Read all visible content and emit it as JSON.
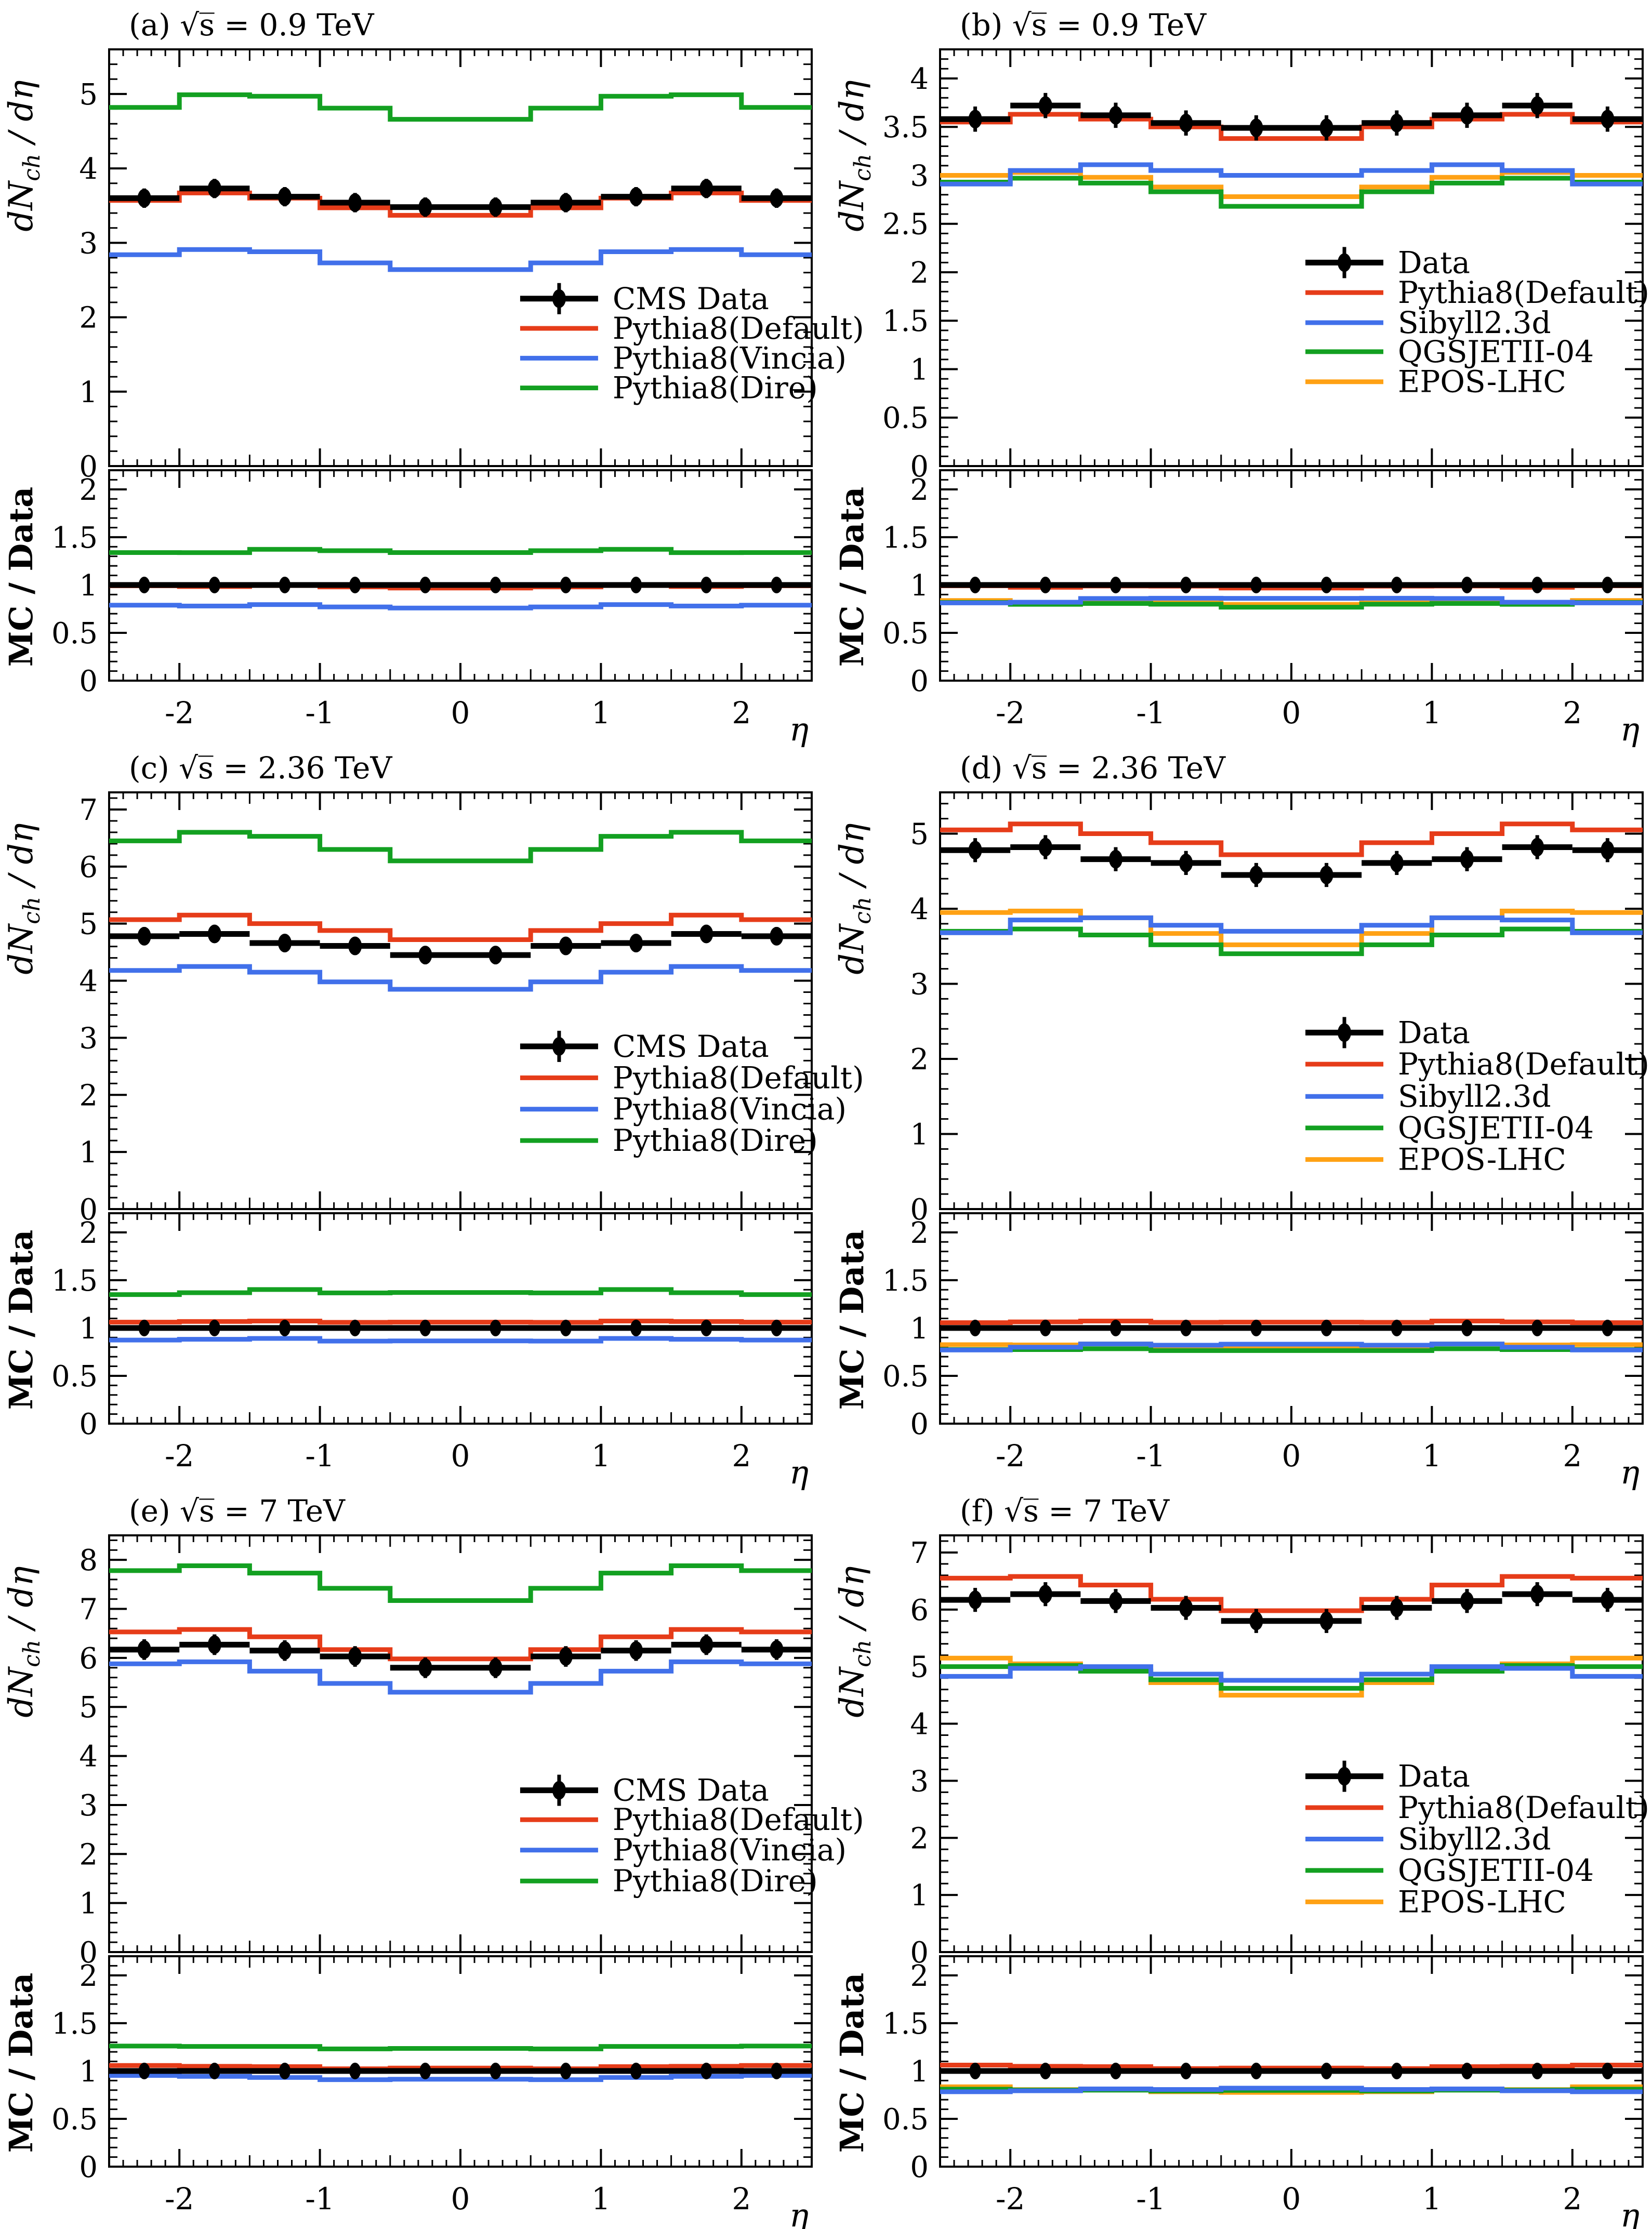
{
  "figure": {
    "x_axis_label": "η",
    "x_tick_labels": [
      "-2",
      "-1",
      "0",
      "1",
      "2"
    ],
    "main_y_title_parts": [
      "dN",
      "ch",
      " / d",
      "η"
    ],
    "ratio_y_title": "MC / Data",
    "sqrt_s_prefix": "√s = "
  },
  "colors": {
    "data": "#000000",
    "red": "#e63c19",
    "blue": "#4170ea",
    "green": "#13a021",
    "orange": "#ffa114"
  },
  "chart_data": {
    "type": "line",
    "note": "Six panels; each has a main step-histogram chart (dNch/deta vs eta) and a ratio chart (MC/Data vs eta). Bin edges from -2.5 to 2.5, width 0.5.",
    "bin_edges": [
      -2.5,
      -2.0,
      -1.5,
      -1.0,
      -0.5,
      0.0,
      0.5,
      1.0,
      1.5,
      2.0,
      2.5
    ],
    "bin_centers": [
      -2.25,
      -1.75,
      -1.25,
      -0.75,
      -0.25,
      0.25,
      0.75,
      1.25,
      1.75,
      2.25
    ],
    "ratio_ylim": [
      0,
      2.2
    ],
    "ratio_tick_labels": [
      "0",
      "0.5",
      "1",
      "1.5",
      "2"
    ],
    "panels": [
      {
        "id": "a",
        "row": 0,
        "col": 0,
        "tag": "(a)",
        "energy": "0.9 TeV",
        "ymax": 5.6,
        "label_step": 1,
        "minor_step": 0.2,
        "max_label": 5,
        "data": {
          "label": "CMS Data",
          "values": [
            3.6,
            3.73,
            3.62,
            3.54,
            3.48,
            3.48,
            3.54,
            3.62,
            3.73,
            3.6
          ],
          "err": 0.13
        },
        "series": [
          {
            "key": "pythia8-dire",
            "label": "Pythia8(Dire)",
            "color": "green",
            "values": [
              4.82,
              4.99,
              4.97,
              4.81,
              4.66,
              4.66,
              4.81,
              4.97,
              4.99,
              4.82
            ],
            "ratio": [
              1.339,
              1.338,
              1.373,
              1.359,
              1.339,
              1.339,
              1.359,
              1.373,
              1.338,
              1.339
            ]
          },
          {
            "key": "pythia8-vincia",
            "label": "Pythia8(Vincia)",
            "color": "blue",
            "values": [
              2.84,
              2.91,
              2.88,
              2.73,
              2.64,
              2.64,
              2.73,
              2.88,
              2.91,
              2.84
            ],
            "ratio": [
              0.789,
              0.78,
              0.795,
              0.771,
              0.759,
              0.759,
              0.771,
              0.795,
              0.78,
              0.789
            ]
          },
          {
            "key": "pythia8-default",
            "label": "Pythia8(Default)",
            "color": "red",
            "values": [
              3.57,
              3.67,
              3.6,
              3.47,
              3.37,
              3.37,
              3.47,
              3.6,
              3.67,
              3.57
            ],
            "ratio": [
              0.992,
              0.984,
              0.994,
              0.98,
              0.968,
              0.968,
              0.98,
              0.994,
              0.984,
              0.992
            ]
          }
        ],
        "legend_order": [
          "data",
          "pythia8-default",
          "pythia8-vincia",
          "pythia8-dire"
        ],
        "legend": {
          "x_frac": 0.585,
          "y_vals": [
            2.25,
            1.85,
            1.45,
            1.05
          ]
        }
      },
      {
        "id": "b",
        "row": 0,
        "col": 1,
        "tag": "(b)",
        "energy": "0.9 TeV",
        "ymax": 4.3,
        "label_step": 0.5,
        "minor_step": 0.1,
        "max_label": 4,
        "data": {
          "label": "Data",
          "values": [
            3.58,
            3.72,
            3.62,
            3.54,
            3.49,
            3.49,
            3.54,
            3.62,
            3.72,
            3.58
          ],
          "err": 0.13
        },
        "series": [
          {
            "key": "epos-lhc",
            "label": "EPOS-LHC",
            "color": "orange",
            "values": [
              3.0,
              3.03,
              2.98,
              2.88,
              2.78,
              2.78,
              2.88,
              2.98,
              3.03,
              3.0
            ],
            "ratio": [
              0.838,
              0.814,
              0.823,
              0.813,
              0.797,
              0.797,
              0.813,
              0.823,
              0.814,
              0.838
            ]
          },
          {
            "key": "qgsjetii-04",
            "label": "QGSJETII-04",
            "color": "green",
            "values": [
              2.93,
              2.97,
              2.92,
              2.83,
              2.68,
              2.68,
              2.83,
              2.92,
              2.97,
              2.93
            ],
            "ratio": [
              0.818,
              0.798,
              0.807,
              0.799,
              0.768,
              0.768,
              0.799,
              0.807,
              0.798,
              0.818
            ]
          },
          {
            "key": "sibyll2.3d",
            "label": "Sibyll2.3d",
            "color": "blue",
            "values": [
              2.91,
              3.05,
              3.11,
              3.05,
              3.0,
              3.0,
              3.05,
              3.11,
              3.05,
              2.91
            ],
            "ratio": [
              0.813,
              0.82,
              0.859,
              0.862,
              0.86,
              0.86,
              0.862,
              0.859,
              0.82,
              0.813
            ]
          },
          {
            "key": "pythia8-default",
            "label": "Pythia8(Default)",
            "color": "red",
            "values": [
              3.55,
              3.63,
              3.58,
              3.5,
              3.38,
              3.38,
              3.5,
              3.58,
              3.63,
              3.55
            ],
            "ratio": [
              0.992,
              0.976,
              0.989,
              0.988,
              0.968,
              0.968,
              0.988,
              0.989,
              0.976,
              0.992
            ]
          }
        ],
        "legend_order": [
          "data",
          "pythia8-default",
          "sibyll2.3d",
          "qgsjetii-04",
          "epos-lhc"
        ],
        "legend": {
          "x_frac": 0.52,
          "y_vals": [
            2.1,
            1.79,
            1.48,
            1.18,
            0.87
          ]
        }
      },
      {
        "id": "c",
        "row": 1,
        "col": 0,
        "tag": "(c)",
        "energy": "2.36 TeV",
        "ymax": 7.3,
        "label_step": 1,
        "minor_step": 0.2,
        "max_label": 7,
        "data": {
          "label": "CMS Data",
          "values": [
            4.78,
            4.82,
            4.66,
            4.61,
            4.45,
            4.45,
            4.61,
            4.66,
            4.82,
            4.78
          ],
          "err": 0.16
        },
        "series": [
          {
            "key": "pythia8-dire",
            "label": "Pythia8(Dire)",
            "color": "green",
            "values": [
              6.45,
              6.6,
              6.53,
              6.3,
              6.1,
              6.1,
              6.3,
              6.53,
              6.6,
              6.45
            ],
            "ratio": [
              1.349,
              1.369,
              1.402,
              1.367,
              1.371,
              1.371,
              1.367,
              1.402,
              1.369,
              1.349
            ]
          },
          {
            "key": "pythia8-vincia",
            "label": "Pythia8(Vincia)",
            "color": "blue",
            "values": [
              4.18,
              4.25,
              4.15,
              3.98,
              3.85,
              3.85,
              3.98,
              4.15,
              4.25,
              4.18
            ],
            "ratio": [
              0.874,
              0.882,
              0.891,
              0.863,
              0.865,
              0.865,
              0.863,
              0.891,
              0.882,
              0.874
            ]
          },
          {
            "key": "pythia8-default",
            "label": "Pythia8(Default)",
            "color": "red",
            "values": [
              5.07,
              5.15,
              5.0,
              4.88,
              4.72,
              4.72,
              4.88,
              5.0,
              5.15,
              5.07
            ],
            "ratio": [
              1.061,
              1.068,
              1.073,
              1.059,
              1.061,
              1.061,
              1.059,
              1.073,
              1.068,
              1.061
            ]
          }
        ],
        "legend_order": [
          "data",
          "pythia8-default",
          "pythia8-vincia",
          "pythia8-dire"
        ],
        "legend": {
          "x_frac": 0.585,
          "y_vals": [
            2.85,
            2.3,
            1.75,
            1.2
          ]
        }
      },
      {
        "id": "d",
        "row": 1,
        "col": 1,
        "tag": "(d)",
        "energy": "2.36 TeV",
        "ymax": 5.55,
        "label_step": 1,
        "minor_step": 0.2,
        "max_label": 5,
        "data": {
          "label": "Data",
          "values": [
            4.78,
            4.82,
            4.66,
            4.61,
            4.45,
            4.45,
            4.61,
            4.66,
            4.82,
            4.78
          ],
          "err": 0.16
        },
        "series": [
          {
            "key": "epos-lhc",
            "label": "EPOS-LHC",
            "color": "orange",
            "values": [
              3.95,
              3.97,
              3.88,
              3.67,
              3.52,
              3.52,
              3.67,
              3.88,
              3.97,
              3.95
            ],
            "ratio": [
              0.826,
              0.823,
              0.833,
              0.796,
              0.791,
              0.791,
              0.796,
              0.833,
              0.823,
              0.826
            ]
          },
          {
            "key": "qgsjetii-04",
            "label": "QGSJETII-04",
            "color": "green",
            "values": [
              3.7,
              3.73,
              3.65,
              3.52,
              3.4,
              3.4,
              3.52,
              3.65,
              3.73,
              3.7
            ],
            "ratio": [
              0.774,
              0.774,
              0.783,
              0.764,
              0.764,
              0.764,
              0.764,
              0.783,
              0.774,
              0.774
            ]
          },
          {
            "key": "sibyll2.3d",
            "label": "Sibyll2.3d",
            "color": "blue",
            "values": [
              3.68,
              3.85,
              3.88,
              3.78,
              3.7,
              3.7,
              3.78,
              3.88,
              3.85,
              3.68
            ],
            "ratio": [
              0.77,
              0.799,
              0.833,
              0.82,
              0.831,
              0.831,
              0.82,
              0.833,
              0.799,
              0.77
            ]
          },
          {
            "key": "pythia8-default",
            "label": "Pythia8(Default)",
            "color": "red",
            "values": [
              5.05,
              5.13,
              5.0,
              4.88,
              4.72,
              4.72,
              4.88,
              5.0,
              5.13,
              5.05
            ],
            "ratio": [
              1.056,
              1.064,
              1.073,
              1.059,
              1.061,
              1.061,
              1.059,
              1.073,
              1.064,
              1.056
            ]
          }
        ],
        "legend_order": [
          "data",
          "pythia8-default",
          "sibyll2.3d",
          "qgsjetii-04",
          "epos-lhc"
        ],
        "legend": {
          "x_frac": 0.52,
          "y_vals": [
            2.35,
            1.93,
            1.5,
            1.08,
            0.66
          ]
        }
      },
      {
        "id": "e",
        "row": 2,
        "col": 0,
        "tag": "(e)",
        "energy": "7 TeV",
        "ymax": 8.5,
        "label_step": 1,
        "minor_step": 0.2,
        "max_label": 8,
        "data": {
          "label": "CMS Data",
          "values": [
            6.17,
            6.27,
            6.15,
            6.03,
            5.8,
            5.8,
            6.03,
            6.15,
            6.27,
            6.17
          ],
          "err": 0.21
        },
        "series": [
          {
            "key": "pythia8-dire",
            "label": "Pythia8(Dire)",
            "color": "green",
            "values": [
              7.78,
              7.88,
              7.73,
              7.42,
              7.17,
              7.17,
              7.42,
              7.73,
              7.88,
              7.78
            ],
            "ratio": [
              1.261,
              1.257,
              1.257,
              1.231,
              1.236,
              1.236,
              1.231,
              1.257,
              1.257,
              1.261
            ]
          },
          {
            "key": "pythia8-vincia",
            "label": "Pythia8(Vincia)",
            "color": "blue",
            "values": [
              5.88,
              5.92,
              5.73,
              5.48,
              5.3,
              5.3,
              5.48,
              5.73,
              5.92,
              5.88
            ],
            "ratio": [
              0.953,
              0.944,
              0.932,
              0.909,
              0.914,
              0.914,
              0.909,
              0.932,
              0.944,
              0.953
            ]
          },
          {
            "key": "pythia8-default",
            "label": "Pythia8(Default)",
            "color": "red",
            "values": [
              6.53,
              6.58,
              6.43,
              6.17,
              5.98,
              5.98,
              6.17,
              6.43,
              6.58,
              6.53
            ],
            "ratio": [
              1.058,
              1.049,
              1.046,
              1.023,
              1.031,
              1.031,
              1.023,
              1.046,
              1.049,
              1.058
            ]
          }
        ],
        "legend_order": [
          "data",
          "pythia8-default",
          "pythia8-vincia",
          "pythia8-dire"
        ],
        "legend": {
          "x_frac": 0.585,
          "y_vals": [
            3.3,
            2.7,
            2.08,
            1.45
          ]
        }
      },
      {
        "id": "f",
        "row": 2,
        "col": 1,
        "tag": "(f)",
        "energy": "7 TeV",
        "ymax": 7.3,
        "label_step": 1,
        "minor_step": 0.2,
        "max_label": 7,
        "data": {
          "label": "Data",
          "values": [
            6.17,
            6.27,
            6.15,
            6.03,
            5.8,
            5.8,
            6.03,
            6.15,
            6.27,
            6.17
          ],
          "err": 0.21
        },
        "series": [
          {
            "key": "epos-lhc",
            "label": "EPOS-LHC",
            "color": "orange",
            "values": [
              5.15,
              5.05,
              4.93,
              4.72,
              4.5,
              4.5,
              4.72,
              4.93,
              5.05,
              5.15
            ],
            "ratio": [
              0.835,
              0.805,
              0.802,
              0.783,
              0.776,
              0.776,
              0.783,
              0.802,
              0.805,
              0.835
            ]
          },
          {
            "key": "qgsjetii-04",
            "label": "QGSJETII-04",
            "color": "green",
            "values": [
              5.0,
              5.02,
              4.92,
              4.77,
              4.62,
              4.62,
              4.77,
              4.92,
              5.02,
              5.0
            ],
            "ratio": [
              0.81,
              0.801,
              0.8,
              0.791,
              0.797,
              0.797,
              0.791,
              0.8,
              0.801,
              0.81
            ]
          },
          {
            "key": "sibyll2.3d",
            "label": "Sibyll2.3d",
            "color": "blue",
            "values": [
              4.83,
              4.97,
              5.0,
              4.87,
              4.76,
              4.76,
              4.87,
              5.0,
              4.97,
              4.83
            ],
            "ratio": [
              0.783,
              0.793,
              0.813,
              0.807,
              0.821,
              0.821,
              0.807,
              0.813,
              0.793,
              0.783
            ]
          },
          {
            "key": "pythia8-default",
            "label": "Pythia8(Default)",
            "color": "red",
            "values": [
              6.55,
              6.58,
              6.43,
              6.18,
              5.98,
              5.98,
              6.18,
              6.43,
              6.58,
              6.55
            ],
            "ratio": [
              1.062,
              1.049,
              1.046,
              1.025,
              1.031,
              1.031,
              1.025,
              1.046,
              1.049,
              1.062
            ]
          }
        ],
        "legend_order": [
          "data",
          "pythia8-default",
          "sibyll2.3d",
          "qgsjetii-04",
          "epos-lhc"
        ],
        "legend": {
          "x_frac": 0.52,
          "y_vals": [
            3.08,
            2.53,
            1.98,
            1.43,
            0.88
          ]
        }
      }
    ]
  }
}
